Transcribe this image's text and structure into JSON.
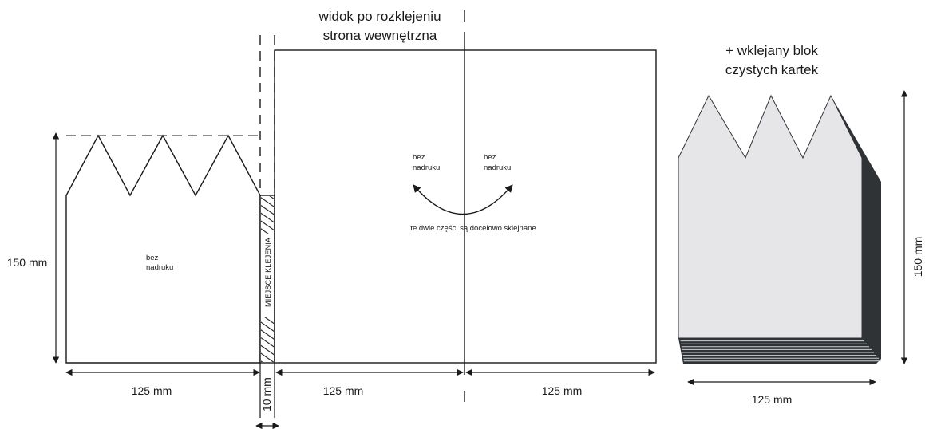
{
  "titles": {
    "unfolded_line1": "widok po rozklejeniu",
    "unfolded_line2": "strona wewnętrzna",
    "block_line1": "+ wklejany blok",
    "block_line2": "czystych kartek"
  },
  "labels": {
    "no_print_line1": "bez",
    "no_print_line2": "nadruku",
    "glue_strip": "MIEJSCE KLEJENIA",
    "glued_parts": "te dwie części są docelowo sklejnane"
  },
  "dimensions": {
    "left_height": "150 mm",
    "left_width": "125 mm",
    "glue_width": "10 mm",
    "inner_left_width": "125 mm",
    "inner_right_width": "125 mm",
    "block_width": "125 mm",
    "block_height": "150 mm"
  },
  "colors": {
    "line": "#1a1a1a",
    "block_face": "#e6e6e8",
    "block_shadow": "#2f3336"
  }
}
